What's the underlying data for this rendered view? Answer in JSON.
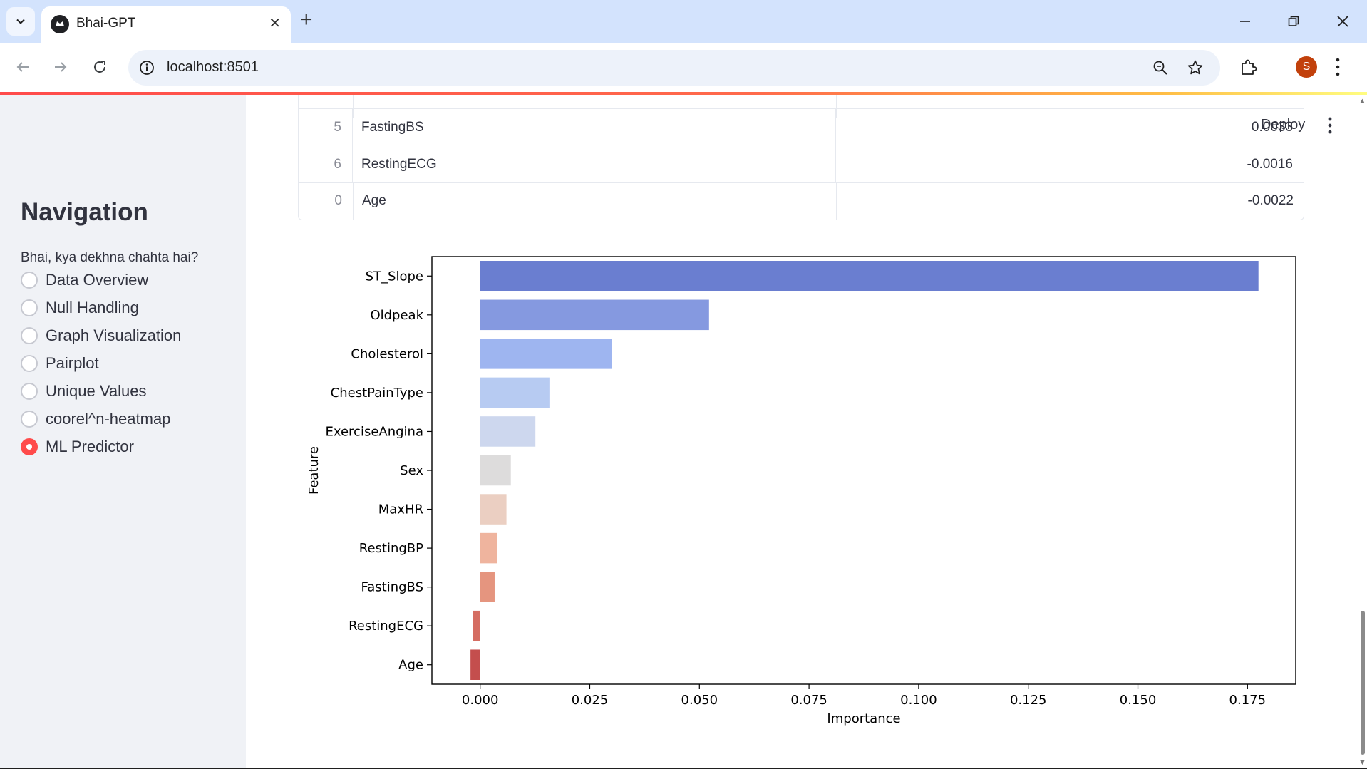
{
  "browser": {
    "tab_title": "Bhai-GPT",
    "url": "localhost:8501",
    "profile_initial": "S"
  },
  "sidebar": {
    "title": "Navigation",
    "question": "Bhai, kya dekhna chahta hai?",
    "options": [
      {
        "label": "Data Overview",
        "selected": false
      },
      {
        "label": "Null Handling",
        "selected": false
      },
      {
        "label": "Graph Visualization",
        "selected": false
      },
      {
        "label": "Pairplot",
        "selected": false
      },
      {
        "label": "Unique Values",
        "selected": false
      },
      {
        "label": "coorel^n-heatmap",
        "selected": false
      },
      {
        "label": "ML Predictor",
        "selected": true
      }
    ]
  },
  "header": {
    "deploy_label": "Deploy"
  },
  "table": {
    "rows": [
      {
        "index": "5",
        "feature": "FastingBS",
        "value": "0.0033"
      },
      {
        "index": "6",
        "feature": "RestingECG",
        "value": "-0.0016"
      },
      {
        "index": "0",
        "feature": "Age",
        "value": "-0.0022"
      }
    ]
  },
  "chart_data": {
    "type": "bar",
    "orientation": "horizontal",
    "xlabel": "Importance",
    "ylabel": "Feature",
    "xlim": [
      -0.011,
      0.186
    ],
    "xticks": [
      "0.000",
      "0.025",
      "0.050",
      "0.075",
      "0.100",
      "0.125",
      "0.150",
      "0.175"
    ],
    "categories": [
      "ST_Slope",
      "Oldpeak",
      "Cholesterol",
      "ChestPainType",
      "ExerciseAngina",
      "Sex",
      "MaxHR",
      "RestingBP",
      "FastingBS",
      "RestingECG",
      "Age"
    ],
    "values": [
      0.1775,
      0.0522,
      0.03,
      0.0158,
      0.0126,
      0.007,
      0.006,
      0.0039,
      0.0033,
      -0.0016,
      -0.0022
    ],
    "colors": [
      "#6a7ed0",
      "#8599e0",
      "#9eb5f0",
      "#b7cbf2",
      "#cdd7ee",
      "#dddcdc",
      "#ebcfc2",
      "#efb49e",
      "#e5957f",
      "#d56d62",
      "#c44e4d"
    ]
  }
}
